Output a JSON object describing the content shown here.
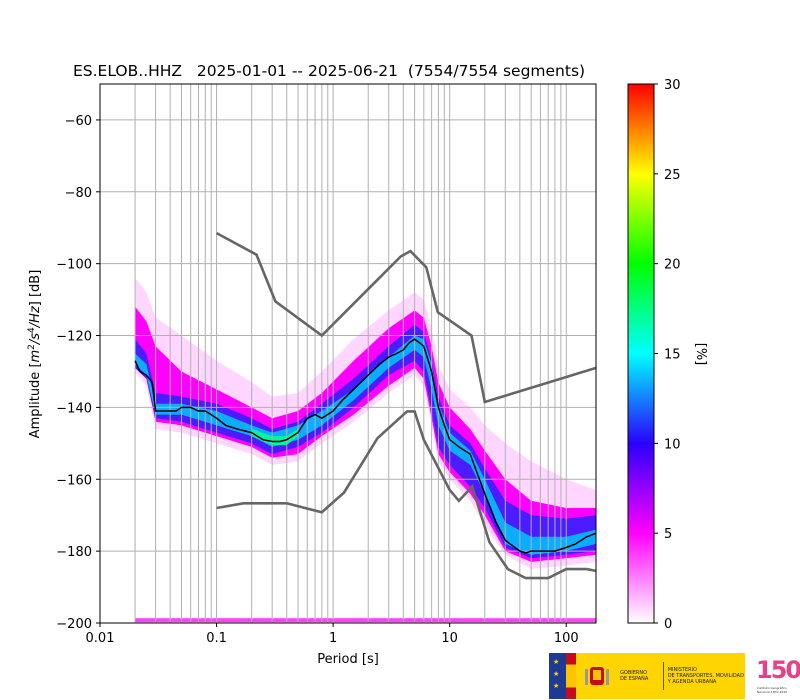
{
  "chart_data": {
    "type": "heatmap",
    "title": "ES.ELOB..HHZ   2025-01-01 -- 2025-06-21  (7554/7554 segments)",
    "xlabel": "Period [s]",
    "ylabel_main": "Amplitude [m²/s⁴/Hz] [dB]",
    "ylabel_parts": {
      "prefix": "Amplitude [",
      "m": "m",
      "exp2": "2",
      "s": "/s",
      "exp4": "4",
      "hz": "/Hz",
      "suffix": "] [dB]"
    },
    "xscale": "log",
    "xlim": [
      0.01,
      180
    ],
    "ylim": [
      -200,
      -50
    ],
    "grid": true,
    "xtick_labels": [
      "0.01",
      "0.1",
      "1",
      "10",
      "100"
    ],
    "ytick_labels": [
      "−60",
      "−80",
      "−100",
      "−120",
      "−140",
      "−160",
      "−180",
      "−200"
    ],
    "ytick_values": [
      -60,
      -80,
      -100,
      -120,
      -140,
      -160,
      -180,
      -200
    ],
    "colorbar": {
      "label": "[%]",
      "min": 0,
      "max": 30,
      "tick_labels": [
        "0",
        "5",
        "10",
        "15",
        "20",
        "25",
        "30"
      ],
      "colormap": [
        "#ffffff",
        "#ff00ff",
        "#2a00ff",
        "#00ffff",
        "#00ff00",
        "#ffff00",
        "#ff0000"
      ]
    },
    "vertical_period_lines": [
      0.02,
      0.03,
      0.04,
      0.05,
      0.06,
      0.07,
      0.08,
      0.09,
      0.1,
      0.2,
      0.3,
      0.4,
      0.5,
      0.6,
      0.7,
      0.8,
      0.9,
      1,
      2,
      3,
      4,
      5,
      6,
      7,
      8,
      9,
      10,
      20,
      30,
      40,
      50,
      60,
      70,
      80,
      90,
      100
    ],
    "mode_line": [
      [
        0.02,
        -127
      ],
      [
        0.022,
        -130
      ],
      [
        0.025,
        -131
      ],
      [
        0.028,
        -133
      ],
      [
        0.03,
        -141
      ],
      [
        0.035,
        -141
      ],
      [
        0.04,
        -141
      ],
      [
        0.045,
        -141
      ],
      [
        0.05,
        -140
      ],
      [
        0.06,
        -140
      ],
      [
        0.07,
        -141
      ],
      [
        0.08,
        -141
      ],
      [
        0.09,
        -142
      ],
      [
        0.1,
        -143
      ],
      [
        0.12,
        -145
      ],
      [
        0.15,
        -146
      ],
      [
        0.2,
        -147
      ],
      [
        0.25,
        -149
      ],
      [
        0.3,
        -149.5
      ],
      [
        0.35,
        -149.5
      ],
      [
        0.4,
        -149
      ],
      [
        0.5,
        -147
      ],
      [
        0.6,
        -143
      ],
      [
        0.7,
        -142
      ],
      [
        0.8,
        -143
      ],
      [
        1.0,
        -141
      ],
      [
        1.2,
        -138
      ],
      [
        1.5,
        -135
      ],
      [
        2.0,
        -131
      ],
      [
        2.5,
        -128
      ],
      [
        3.0,
        -126
      ],
      [
        3.5,
        -125
      ],
      [
        4.0,
        -124
      ],
      [
        4.5,
        -122
      ],
      [
        5.0,
        -121
      ],
      [
        5.5,
        -122
      ],
      [
        6.0,
        -123
      ],
      [
        7.0,
        -130
      ],
      [
        8.0,
        -140
      ],
      [
        9.0,
        -145
      ],
      [
        10,
        -149
      ],
      [
        11,
        -150
      ],
      [
        12,
        -151
      ],
      [
        15,
        -153
      ],
      [
        18,
        -160
      ],
      [
        20,
        -164
      ],
      [
        25,
        -172
      ],
      [
        30,
        -177
      ],
      [
        40,
        -180
      ],
      [
        45,
        -180.5
      ],
      [
        50,
        -180
      ],
      [
        60,
        -180
      ],
      [
        80,
        -180
      ],
      [
        100,
        -179
      ],
      [
        120,
        -178
      ],
      [
        150,
        -176
      ],
      [
        180,
        -175
      ]
    ],
    "nhnm": [
      [
        0.1,
        -91.5
      ],
      [
        0.22,
        -97.5
      ],
      [
        0.32,
        -110.5
      ],
      [
        0.8,
        -120
      ],
      [
        3.8,
        -98
      ],
      [
        4.6,
        -96.5
      ],
      [
        6.3,
        -101
      ],
      [
        7.9,
        -113.5
      ],
      [
        15.4,
        -120
      ],
      [
        20,
        -138.5
      ],
      [
        180,
        -129
      ]
    ],
    "nlnm": [
      [
        0.1,
        -168
      ],
      [
        0.17,
        -166.7
      ],
      [
        0.4,
        -166.7
      ],
      [
        0.8,
        -169.2
      ],
      [
        1.24,
        -163.7
      ],
      [
        2.4,
        -148.6
      ],
      [
        4.3,
        -141.1
      ],
      [
        5.0,
        -141.1
      ],
      [
        6.0,
        -149
      ],
      [
        10,
        -163
      ],
      [
        12,
        -166
      ],
      [
        15.6,
        -162
      ],
      [
        21.9,
        -177.5
      ],
      [
        31.6,
        -185
      ],
      [
        45,
        -187.5
      ],
      [
        70,
        -187.5
      ],
      [
        100,
        -185
      ],
      [
        150,
        -185
      ],
      [
        180,
        -185.5
      ]
    ],
    "density_bands": [
      {
        "p": [
          0.02,
          0.025,
          0.03,
          0.05,
          0.1,
          0.2,
          0.3,
          0.5,
          0.8,
          1.5,
          3,
          5,
          6,
          7,
          8,
          10,
          15,
          20,
          30,
          50,
          100,
          180
        ],
        "upper": [
          -104,
          -108,
          -115,
          -120,
          -127,
          -133,
          -137,
          -136,
          -130,
          -121,
          -113,
          -108,
          -110,
          -118,
          -128,
          -135,
          -140,
          -145,
          -150,
          -155,
          -160,
          -163
        ],
        "lower": [
          -130,
          -134,
          -146,
          -147,
          -150,
          -153,
          -156,
          -155,
          -150,
          -144,
          -136,
          -131,
          -134,
          -145,
          -155,
          -160,
          -166,
          -173,
          -181,
          -185,
          -184,
          -183
        ],
        "color": "#ffd6ff",
        "opacity": 1
      },
      {
        "p": [
          0.02,
          0.025,
          0.03,
          0.05,
          0.1,
          0.2,
          0.3,
          0.5,
          0.8,
          1.5,
          3,
          5,
          6,
          7,
          8,
          10,
          15,
          20,
          30,
          50,
          100,
          180
        ],
        "upper": [
          -112,
          -116,
          -123,
          -130,
          -135,
          -140,
          -143,
          -141,
          -136,
          -127,
          -118,
          -113,
          -115,
          -123,
          -133,
          -140,
          -146,
          -152,
          -160,
          -166,
          -168,
          -168
        ],
        "lower": [
          -129,
          -132,
          -144,
          -145,
          -148,
          -151,
          -154,
          -153,
          -148,
          -142,
          -134,
          -129,
          -132,
          -143,
          -153,
          -158,
          -164,
          -170,
          -180,
          -183,
          -182,
          -181
        ],
        "color": "#ff00ff",
        "opacity": 1
      },
      {
        "p": [
          0.02,
          0.025,
          0.03,
          0.05,
          0.1,
          0.2,
          0.3,
          0.5,
          0.8,
          1.5,
          3,
          5,
          6,
          7,
          8,
          10,
          15,
          20,
          30,
          50,
          100,
          180
        ],
        "upper": [
          -121,
          -125,
          -136,
          -137,
          -139,
          -143,
          -146,
          -144,
          -139,
          -132,
          -123,
          -117,
          -119,
          -127,
          -137,
          -145,
          -150,
          -157,
          -166,
          -170,
          -171,
          -170
        ],
        "lower": [
          -129,
          -132,
          -143,
          -144,
          -147,
          -150,
          -153,
          -151,
          -147,
          -140,
          -131,
          -127,
          -130,
          -141,
          -151,
          -156,
          -162,
          -168,
          -179,
          -182,
          -181,
          -180
        ],
        "color": "#4a1cff",
        "opacity": 1
      },
      {
        "p": [
          0.02,
          0.025,
          0.03,
          0.05,
          0.1,
          0.2,
          0.3,
          0.5,
          0.8,
          1.5,
          3,
          5,
          6,
          7,
          8,
          10,
          15,
          20,
          30,
          50,
          100,
          180
        ],
        "upper": [
          -125,
          -128,
          -139,
          -139,
          -141,
          -145,
          -147,
          -145,
          -141,
          -135,
          -126,
          -120,
          -121,
          -128,
          -139,
          -147,
          -152,
          -160,
          -172,
          -176,
          -176,
          -174
        ],
        "lower": [
          -128,
          -131,
          -142,
          -142,
          -145,
          -148,
          -151,
          -149,
          -145,
          -138,
          -129,
          -124,
          -126,
          -135,
          -145,
          -152,
          -156,
          -164,
          -178,
          -181,
          -180,
          -178
        ],
        "color": "#00c8ff",
        "opacity": 0.85
      },
      {
        "p": [
          0.2,
          0.3,
          0.4,
          0.5
        ],
        "upper": [
          -146,
          -148,
          -148,
          -146
        ],
        "lower": [
          -148,
          -150.5,
          -150.5,
          -148
        ],
        "color": "#00ff90",
        "opacity": 0.9
      }
    ],
    "floor_band": {
      "value": -199.5,
      "xmin": 0.02,
      "xmax": 180,
      "color": "#ff40ff"
    }
  },
  "footer": {
    "gov_lines": [
      "GOBIERNO",
      "DE ESPAÑA"
    ],
    "ministry_lines": [
      "MINISTERIO",
      "DE TRANSPORTES, MOVILIDAD",
      "Y AGENDA URBANA"
    ],
    "ign_number": "150",
    "ign_text": "Instituto Geográfico Nacional 1870-2020"
  }
}
